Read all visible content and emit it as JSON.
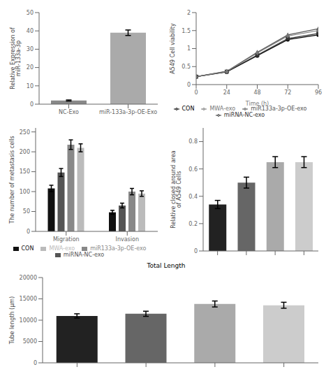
{
  "chart_data": [
    {
      "type": "bar",
      "categories": [
        "NC-Exo",
        "miR-133a-3p-OE-Exo"
      ],
      "values": [
        2.0,
        39.0
      ],
      "errors": [
        0.3,
        1.5
      ],
      "colors": [
        "#888888",
        "#aaaaaa"
      ],
      "ylabel": "Relative Expression of\nmiR-133a-3p",
      "ylim": [
        0,
        50
      ],
      "yticks": [
        0,
        10,
        20,
        30,
        40,
        50
      ]
    },
    {
      "type": "line",
      "x": [
        0,
        24,
        48,
        72,
        96
      ],
      "series": [
        {
          "name": "CON",
          "color": "#000000",
          "marker": "circle",
          "values": [
            0.22,
            0.35,
            0.8,
            1.25,
            1.38
          ]
        },
        {
          "name": "miRNA-NC-exo",
          "color": "#333333",
          "marker": "square",
          "values": [
            0.22,
            0.36,
            0.82,
            1.28,
            1.42
          ]
        },
        {
          "name": "miR133a-3p-OE-exo",
          "color": "#555555",
          "marker": "triangle",
          "values": [
            0.22,
            0.37,
            0.9,
            1.38,
            1.55
          ]
        },
        {
          "name": "MWA-exo",
          "color": "#777777",
          "marker": "diamond",
          "values": [
            0.22,
            0.36,
            0.88,
            1.35,
            1.5
          ]
        }
      ],
      "xlabel": "Time (h)",
      "ylabel": "A549 Cell viability",
      "xlim": [
        0,
        96
      ],
      "xticks": [
        0,
        24,
        48,
        72,
        96
      ],
      "ylim": [
        0.0,
        2.0
      ],
      "yticks": [
        0.0,
        0.5,
        1.0,
        1.5,
        2.0
      ],
      "legend": "bottom"
    },
    {
      "type": "bar",
      "categories": [
        "Migration",
        "Invasion"
      ],
      "series": [
        {
          "name": "CON",
          "color": "#111111",
          "values": [
            108,
            48
          ],
          "errors": [
            8,
            5
          ]
        },
        {
          "name": "miRNA-NC-exo",
          "color": "#555555",
          "values": [
            148,
            65
          ],
          "errors": [
            10,
            6
          ]
        },
        {
          "name": "miR133a-3p-OE-exo",
          "color": "#888888",
          "values": [
            218,
            100
          ],
          "errors": [
            12,
            8
          ]
        },
        {
          "name": "MWA-exo",
          "color": "#bbbbbb",
          "values": [
            210,
            95
          ],
          "errors": [
            10,
            7
          ]
        }
      ],
      "ylabel": "The number of metastasis cells",
      "ylim": [
        0,
        260
      ],
      "yticks": [
        0,
        50,
        100,
        150,
        200,
        250
      ],
      "legend": "bottom"
    },
    {
      "type": "bar",
      "categories": [
        null,
        null,
        null,
        null
      ],
      "values": [
        0.34,
        0.5,
        0.65,
        0.65
      ],
      "errors": [
        0.03,
        0.04,
        0.04,
        0.04
      ],
      "colors": [
        "#222222",
        "#666666",
        "#aaaaaa",
        "#cccccc"
      ],
      "ylabel": "Relative closed around area\nof A549 Cells",
      "ylim": [
        0.0,
        0.9
      ],
      "yticks": [
        0.0,
        0.2,
        0.4,
        0.6,
        0.8
      ]
    },
    {
      "type": "bar",
      "title": "Total Length",
      "categories": [
        null,
        null,
        null,
        null
      ],
      "values": [
        11000,
        11500,
        13800,
        13500
      ],
      "errors": [
        500,
        600,
        700,
        700
      ],
      "colors": [
        "#222222",
        "#666666",
        "#aaaaaa",
        "#cccccc"
      ],
      "ylabel": "Tube length (μm)",
      "ylim": [
        0,
        20000
      ],
      "yticks": [
        0,
        5000,
        10000,
        15000,
        20000
      ]
    }
  ]
}
